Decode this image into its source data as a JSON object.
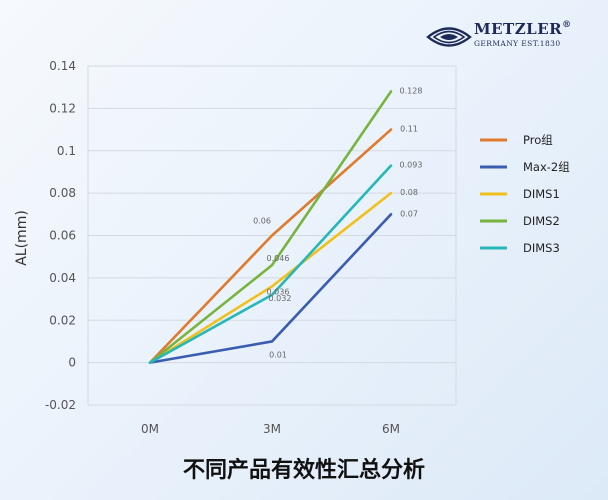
{
  "brand": {
    "name": "METZLER",
    "registered": "®",
    "sub": "GERMANY EST.1830"
  },
  "caption": "不同产品有效性汇总分析",
  "colors": {
    "Pro组": "#e07a2d",
    "Max-2组": "#3a5db0",
    "DIMS1": "#f2c01a",
    "DIMS2": "#78b43c",
    "DIMS3": "#27b7b9"
  },
  "chart_data": {
    "type": "line",
    "categories": [
      "0M",
      "3M",
      "6M"
    ],
    "ylabel": "AL(mm)",
    "ylim": [
      -0.02,
      0.14
    ],
    "yticks": [
      "-0.02",
      "0",
      "0.02",
      "0.04",
      "0.06",
      "0.08",
      "0.1",
      "0.12",
      "0.14"
    ],
    "grid": true,
    "legend_position": "right",
    "series": [
      {
        "name": "Pro组",
        "values": [
          0,
          0.06,
          0.11
        ],
        "labels": [
          "",
          "0.06",
          "0.11"
        ]
      },
      {
        "name": "Max-2组",
        "values": [
          0,
          0.01,
          0.07
        ],
        "labels": [
          "",
          "0.01",
          "0.07"
        ]
      },
      {
        "name": "DIMS1",
        "values": [
          0,
          0.036,
          0.08
        ],
        "labels": [
          "",
          "0.036",
          "0.08"
        ]
      },
      {
        "name": "DIMS2",
        "values": [
          0,
          0.046,
          0.128
        ],
        "labels": [
          "",
          "0.046",
          "0.128"
        ]
      },
      {
        "name": "DIMS3",
        "values": [
          0,
          0.032,
          0.093
        ],
        "labels": [
          "",
          "0.032",
          "0.093"
        ]
      }
    ]
  }
}
